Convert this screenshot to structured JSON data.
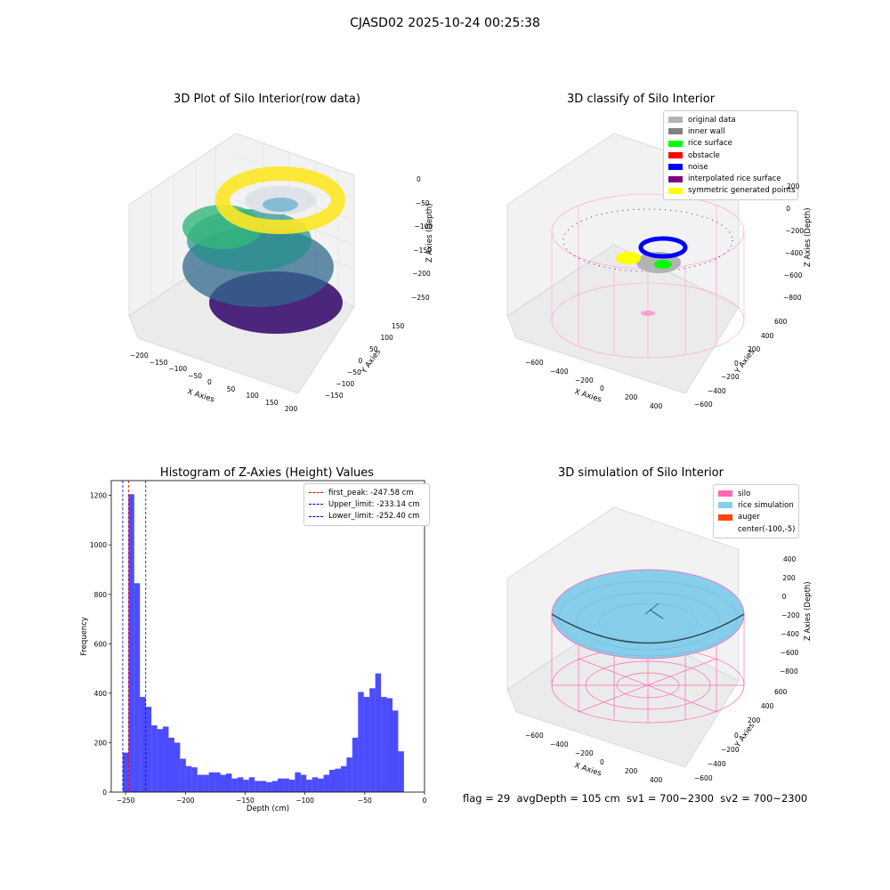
{
  "suptitle": "CJASD02 2025-10-24 00:25:38",
  "panels": {
    "raw": {
      "title": "3D Plot of Silo Interior(row data)",
      "xlabel": "X Axies",
      "ylabel": "Y Axies",
      "zlabel": "Z Axies (Depth)",
      "xticks": [
        "−200",
        "−150",
        "−100",
        "−50",
        "0",
        "50",
        "100",
        "150",
        "200"
      ],
      "yticks": [
        "−150",
        "−100",
        "−50",
        "0",
        "50",
        "100",
        "150"
      ],
      "zticks": [
        "0",
        "−50",
        "−100",
        "−150",
        "−200",
        "−250"
      ]
    },
    "classify": {
      "title": "3D classify of Silo Interior",
      "xlabel": "X Axies",
      "ylabel": "Y Axies",
      "zlabel": "Z Axies (Depth)",
      "xticks": [
        "−600",
        "−400",
        "−200",
        "0",
        "200",
        "400"
      ],
      "yticks": [
        "−600",
        "−400",
        "−200",
        "0",
        "200",
        "400",
        "600"
      ],
      "zticks": [
        "200",
        "0",
        "−200",
        "−400",
        "−600",
        "−800"
      ],
      "legend": [
        {
          "label": "original data",
          "color": "#b3b3b3"
        },
        {
          "label": "inner wall",
          "color": "#808080"
        },
        {
          "label": "rice surface",
          "color": "#00ff00"
        },
        {
          "label": "obstacle",
          "color": "#ff0000"
        },
        {
          "label": "noise",
          "color": "#0000ff"
        },
        {
          "label": "interpolated rice surface",
          "color": "#800080"
        },
        {
          "label": "symmetric generated points",
          "color": "#ffff00"
        }
      ]
    },
    "simulation": {
      "title": "3D simulation of Silo Interior",
      "xlabel": "X Axies",
      "ylabel": "Y Axies",
      "zlabel": "Z Axies (Depth)",
      "xticks": [
        "−600",
        "−400",
        "−200",
        "0",
        "200",
        "400"
      ],
      "yticks": [
        "−600",
        "−400",
        "−200",
        "0",
        "200",
        "400",
        "600"
      ],
      "zticks": [
        "400",
        "200",
        "0",
        "−200",
        "−400",
        "−600",
        "−800"
      ],
      "legend": [
        {
          "label": "silo",
          "color": "#ff69b4"
        },
        {
          "label": "rice simulation",
          "color": "#87ceeb"
        },
        {
          "label": "auger",
          "color": "#ff4500"
        },
        {
          "label": "center(-100,-5)",
          "color": ""
        }
      ]
    }
  },
  "status": {
    "flag": "flag = 29",
    "avg": "avgDepth = 105 cm",
    "sv1": "sv1 = 700~2300",
    "sv2": "sv2 = 700~2300"
  },
  "chart_data": {
    "type": "bar",
    "title": "Histogram of Z-Axies (Height) Values",
    "xlabel": "Depth (cm)",
    "ylabel": "Frequency",
    "xlim": [
      -262,
      0
    ],
    "ylim": [
      0,
      1260
    ],
    "xticks": [
      -250,
      -200,
      -150,
      -100,
      -50,
      0
    ],
    "yticks": [
      0,
      200,
      400,
      600,
      800,
      1000,
      1200
    ],
    "bin_start": -252.4,
    "bin_width": 4.8,
    "values": [
      160,
      1205,
      845,
      385,
      345,
      270,
      255,
      265,
      220,
      200,
      135,
      105,
      100,
      70,
      70,
      80,
      80,
      70,
      75,
      55,
      60,
      50,
      60,
      45,
      45,
      40,
      45,
      55,
      55,
      50,
      80,
      70,
      50,
      60,
      55,
      70,
      90,
      95,
      105,
      140,
      220,
      405,
      385,
      420,
      480,
      385,
      380,
      330,
      165
    ],
    "color": "#0000ff",
    "vlines": [
      {
        "label": "first_peak: -247.58 cm",
        "x": -247.58,
        "color": "#ff0000"
      },
      {
        "label": "Upper_limit: -233.14 cm",
        "x": -233.14,
        "color": "#0000cc"
      },
      {
        "label": "Lower_limit: -252.40 cm",
        "x": -252.4,
        "color": "#0000cc"
      }
    ]
  }
}
